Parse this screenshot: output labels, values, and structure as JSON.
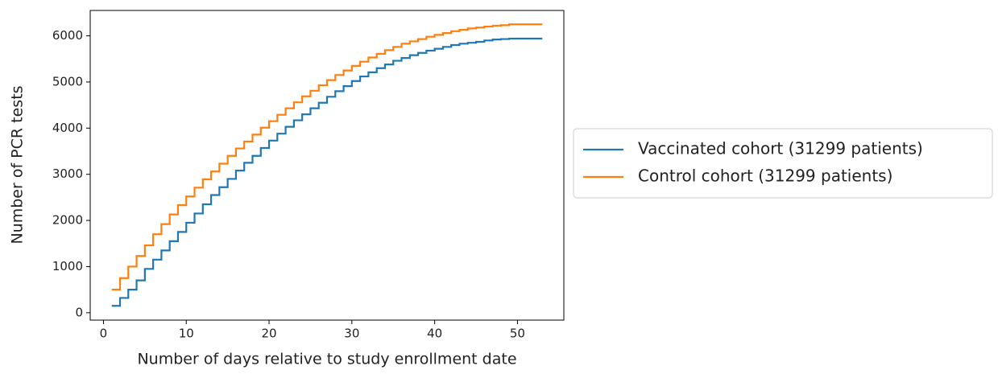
{
  "chart_data": {
    "type": "line",
    "drawstyle": "steps-post",
    "xlabel": "Number of days relative to study enrollment date",
    "ylabel": "Number of PCR tests",
    "x": [
      1,
      2,
      3,
      4,
      5,
      6,
      7,
      8,
      9,
      10,
      11,
      12,
      13,
      14,
      15,
      16,
      17,
      18,
      19,
      20,
      21,
      22,
      23,
      24,
      25,
      26,
      27,
      28,
      29,
      30,
      31,
      32,
      33,
      34,
      35,
      36,
      37,
      38,
      39,
      40,
      41,
      42,
      43,
      44,
      45,
      46,
      47,
      48,
      49,
      50,
      51,
      52,
      53
    ],
    "series": [
      {
        "name": "Vaccinated cohort (31299 patients)",
        "color": "#1f77b4",
        "values": [
          150,
          320,
          500,
          700,
          950,
          1150,
          1350,
          1550,
          1750,
          1950,
          2150,
          2350,
          2550,
          2720,
          2900,
          3080,
          3250,
          3400,
          3570,
          3730,
          3880,
          4030,
          4170,
          4300,
          4430,
          4550,
          4680,
          4800,
          4910,
          5020,
          5120,
          5210,
          5300,
          5380,
          5460,
          5520,
          5580,
          5630,
          5680,
          5720,
          5760,
          5800,
          5830,
          5850,
          5870,
          5900,
          5920,
          5930,
          5940,
          5940,
          5940,
          5940,
          5940
        ]
      },
      {
        "name": "Control cohort (31299 patients)",
        "color": "#ff7f0e",
        "values": [
          500,
          750,
          1000,
          1230,
          1460,
          1700,
          1920,
          2130,
          2330,
          2520,
          2710,
          2890,
          3060,
          3230,
          3400,
          3560,
          3710,
          3860,
          4010,
          4150,
          4290,
          4430,
          4560,
          4690,
          4810,
          4930,
          5040,
          5150,
          5250,
          5350,
          5440,
          5530,
          5610,
          5690,
          5760,
          5830,
          5880,
          5930,
          5980,
          6020,
          6060,
          6100,
          6130,
          6160,
          6180,
          6200,
          6220,
          6230,
          6250,
          6250,
          6250,
          6250,
          6250
        ]
      }
    ],
    "xlim": [
      -1.6,
      55.6
    ],
    "ylim": [
      -160,
      6550
    ],
    "xticks": [
      0,
      10,
      20,
      30,
      40,
      50
    ],
    "yticks": [
      0,
      1000,
      2000,
      3000,
      4000,
      5000,
      6000
    ],
    "legend": "outside right"
  }
}
